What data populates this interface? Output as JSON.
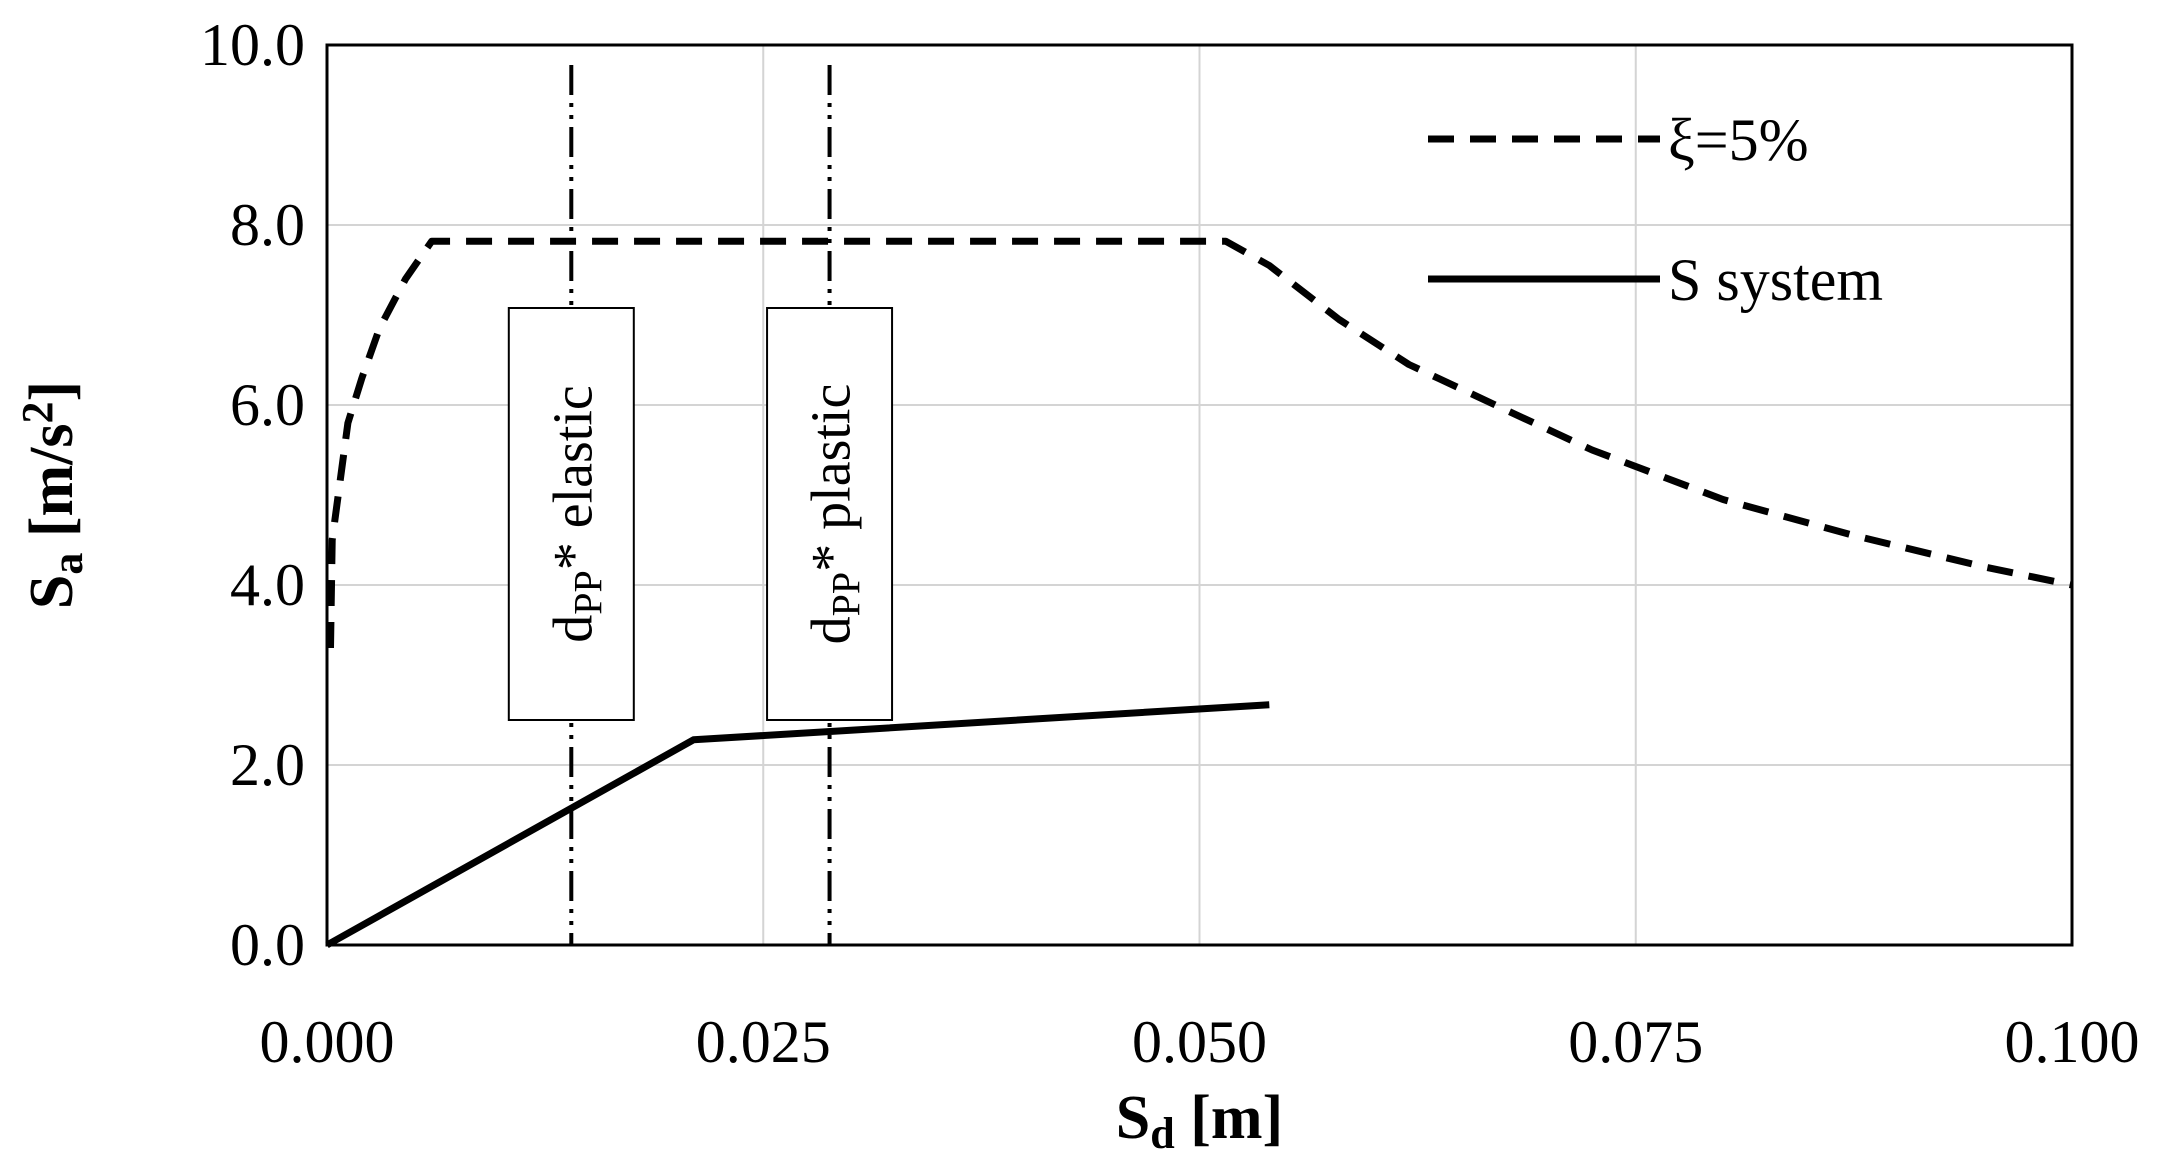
{
  "chart_data": {
    "type": "line",
    "xlabel": "S",
    "xlabel_sub": "d",
    "xlabel_unit": " [m]",
    "ylabel": "S",
    "ylabel_sub": "a",
    "ylabel_unit": " [m/s",
    "ylabel_sup": "2",
    "ylabel_unit_end": "]",
    "xlim": [
      0,
      0.1
    ],
    "ylim": [
      0,
      10
    ],
    "xticks": [
      "0.000",
      "0.025",
      "0.050",
      "0.075",
      "0.100"
    ],
    "xtick_values": [
      0,
      0.025,
      0.05,
      0.075,
      0.1
    ],
    "yticks": [
      "0.0",
      "2.0",
      "4.0",
      "6.0",
      "8.0",
      "10.0"
    ],
    "ytick_values": [
      0,
      2,
      4,
      6,
      8,
      10
    ],
    "grid": true,
    "legend_position": "top-right",
    "series": [
      {
        "name": "ξ=5%",
        "style": "dashed",
        "color": "#000000",
        "points": [
          [
            0.0002,
            3.3
          ],
          [
            0.0003,
            4.5
          ],
          [
            0.0012,
            5.8
          ],
          [
            0.002,
            6.3
          ],
          [
            0.003,
            6.85
          ],
          [
            0.0045,
            7.4
          ],
          [
            0.006,
            7.82
          ],
          [
            0.0515,
            7.82
          ],
          [
            0.054,
            7.55
          ],
          [
            0.058,
            6.95
          ],
          [
            0.062,
            6.45
          ],
          [
            0.0675,
            5.95
          ],
          [
            0.0725,
            5.5
          ],
          [
            0.08,
            4.95
          ],
          [
            0.0875,
            4.55
          ],
          [
            0.095,
            4.2
          ],
          [
            0.1,
            4.0
          ]
        ]
      },
      {
        "name": "S system",
        "style": "solid",
        "color": "#000000",
        "points": [
          [
            0,
            0
          ],
          [
            0.021,
            2.28
          ],
          [
            0.054,
            2.67
          ]
        ]
      }
    ],
    "vertical_markers": [
      {
        "x": 0.014,
        "label_main": "d",
        "label_sub": "PP",
        "label_rest": "* elastic",
        "label_y_center": 5.9
      },
      {
        "x": 0.0288,
        "label_main": "d",
        "label_sub": "PP",
        "label_rest": "* plastic",
        "label_y_center": 5.9
      }
    ]
  }
}
